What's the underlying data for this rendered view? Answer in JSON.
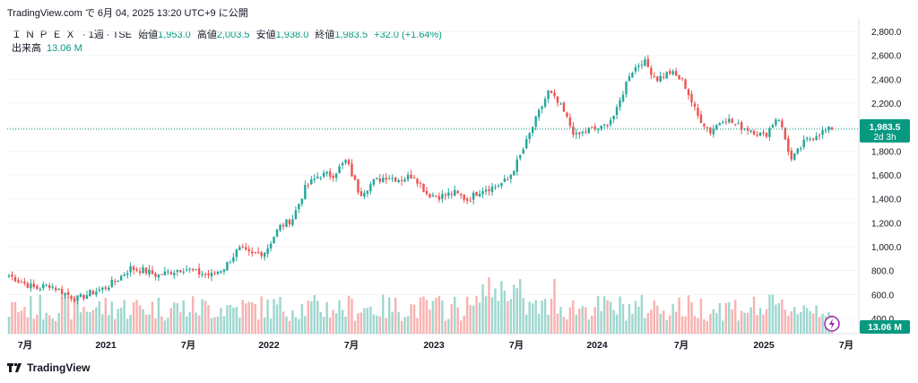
{
  "header": {
    "source_line": "TradingView.com で 6月 04, 2025 13:20 UTC+9 に公開",
    "symbol": "ＩＮＰＥＸ",
    "interval": "· 1週 · TSE",
    "open_label": "始値",
    "open_value": "1,953.0",
    "high_label": "高値",
    "high_value": "2,003.5",
    "low_label": "安値",
    "low_value": "1,938.0",
    "close_label": "終値",
    "close_value": "1,983.5",
    "change": "+32.0 (+1.64%)",
    "volume_label": "出来高",
    "volume_value": "13.06 M"
  },
  "footer": {
    "brand": "TradingView"
  },
  "price_tag": {
    "price": "1,983.5",
    "countdown": "2d 3h"
  },
  "volume_tag": "13.06 M",
  "colors": {
    "up": "#26a69a",
    "down": "#ef5350",
    "up_vol": "#9fd7cf",
    "down_vol": "#f7b3b1",
    "tag": "#089981",
    "flash": "#9c27b0"
  },
  "chart_data": {
    "type": "candlestick",
    "y_axis": {
      "ticks": [
        "2,800.0",
        "2,600.0",
        "2,400.0",
        "2,200.0",
        "2,000.0",
        "1,800.0",
        "1,600.0",
        "1,400.0",
        "1,200.0",
        "1,000.0",
        "800.0",
        "600.0",
        "400.0"
      ],
      "ylim": [
        400,
        2850
      ]
    },
    "x_axis": {
      "ticks": [
        "7月",
        "2021",
        "7月",
        "2022",
        "7月",
        "2023",
        "7月",
        "2024",
        "7月",
        "2025",
        "7月"
      ]
    },
    "last_price": 1983.5,
    "last_volume_millions": 13.06,
    "weekly_close_path": [
      {
        "date": "2020-05",
        "close": 760
      },
      {
        "date": "2020-06",
        "close": 700
      },
      {
        "date": "2020-07",
        "close": 650
      },
      {
        "date": "2020-08",
        "close": 680
      },
      {
        "date": "2020-09",
        "close": 620
      },
      {
        "date": "2020-10",
        "close": 560
      },
      {
        "date": "2020-11",
        "close": 610
      },
      {
        "date": "2020-12",
        "close": 650
      },
      {
        "date": "2021-01",
        "close": 720
      },
      {
        "date": "2021-02",
        "close": 820
      },
      {
        "date": "2021-03",
        "close": 800
      },
      {
        "date": "2021-04",
        "close": 760
      },
      {
        "date": "2021-05",
        "close": 790
      },
      {
        "date": "2021-06",
        "close": 820
      },
      {
        "date": "2021-07",
        "close": 780
      },
      {
        "date": "2021-08",
        "close": 760
      },
      {
        "date": "2021-09",
        "close": 830
      },
      {
        "date": "2021-10",
        "close": 980
      },
      {
        "date": "2021-11",
        "close": 930
      },
      {
        "date": "2021-12",
        "close": 960
      },
      {
        "date": "2022-01",
        "close": 1160
      },
      {
        "date": "2022-02",
        "close": 1230
      },
      {
        "date": "2022-03",
        "close": 1500
      },
      {
        "date": "2022-04",
        "close": 1600
      },
      {
        "date": "2022-05",
        "close": 1600
      },
      {
        "date": "2022-06",
        "close": 1720
      },
      {
        "date": "2022-07",
        "close": 1440
      },
      {
        "date": "2022-08",
        "close": 1540
      },
      {
        "date": "2022-09",
        "close": 1590
      },
      {
        "date": "2022-10",
        "close": 1560
      },
      {
        "date": "2022-11",
        "close": 1600
      },
      {
        "date": "2022-12",
        "close": 1440
      },
      {
        "date": "2023-01",
        "close": 1420
      },
      {
        "date": "2023-02",
        "close": 1450
      },
      {
        "date": "2023-03",
        "close": 1390
      },
      {
        "date": "2023-04",
        "close": 1480
      },
      {
        "date": "2023-05",
        "close": 1500
      },
      {
        "date": "2023-06",
        "close": 1560
      },
      {
        "date": "2023-07",
        "close": 1780
      },
      {
        "date": "2023-08",
        "close": 2050
      },
      {
        "date": "2023-09",
        "close": 2300
      },
      {
        "date": "2023-10",
        "close": 2150
      },
      {
        "date": "2023-11",
        "close": 1920
      },
      {
        "date": "2023-12",
        "close": 1980
      },
      {
        "date": "2024-01",
        "close": 1990
      },
      {
        "date": "2024-02",
        "close": 2120
      },
      {
        "date": "2024-03",
        "close": 2450
      },
      {
        "date": "2024-04",
        "close": 2560
      },
      {
        "date": "2024-05",
        "close": 2400
      },
      {
        "date": "2024-06",
        "close": 2460
      },
      {
        "date": "2024-07",
        "close": 2380
      },
      {
        "date": "2024-08",
        "close": 2100
      },
      {
        "date": "2024-09",
        "close": 1960
      },
      {
        "date": "2024-10",
        "close": 2080
      },
      {
        "date": "2024-11",
        "close": 2010
      },
      {
        "date": "2024-12",
        "close": 1980
      },
      {
        "date": "2025-01",
        "close": 1920
      },
      {
        "date": "2025-02",
        "close": 2100
      },
      {
        "date": "2025-03",
        "close": 1720
      },
      {
        "date": "2025-04",
        "close": 1880
      },
      {
        "date": "2025-05",
        "close": 1951
      },
      {
        "date": "2025-06",
        "close": 1983.5
      }
    ]
  }
}
